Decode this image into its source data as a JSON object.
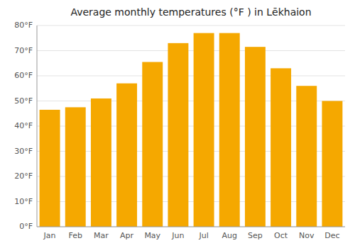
{
  "chart_data": {
    "type": "bar",
    "title": "Average monthly temperatures (°F ) in Lēkhaion",
    "categories": [
      "Jan",
      "Feb",
      "Mar",
      "Apr",
      "May",
      "Jun",
      "Jul",
      "Aug",
      "Sep",
      "Oct",
      "Nov",
      "Dec"
    ],
    "values": [
      46.5,
      47.5,
      51,
      57,
      65.5,
      73,
      77,
      77,
      71.5,
      63,
      56,
      50
    ],
    "color": "#F5A800",
    "ylim": [
      0,
      80
    ],
    "yticks": [
      {
        "value": 0,
        "label": "0°F"
      },
      {
        "value": 10,
        "label": "10°F"
      },
      {
        "value": 20,
        "label": "20°F"
      },
      {
        "value": 30,
        "label": "30°F"
      },
      {
        "value": 40,
        "label": "40°F"
      },
      {
        "value": 50,
        "label": "50°F"
      },
      {
        "value": 60,
        "label": "60°F"
      },
      {
        "value": 70,
        "label": "70°F"
      },
      {
        "value": 80,
        "label": "80°F"
      }
    ],
    "grid": true
  }
}
